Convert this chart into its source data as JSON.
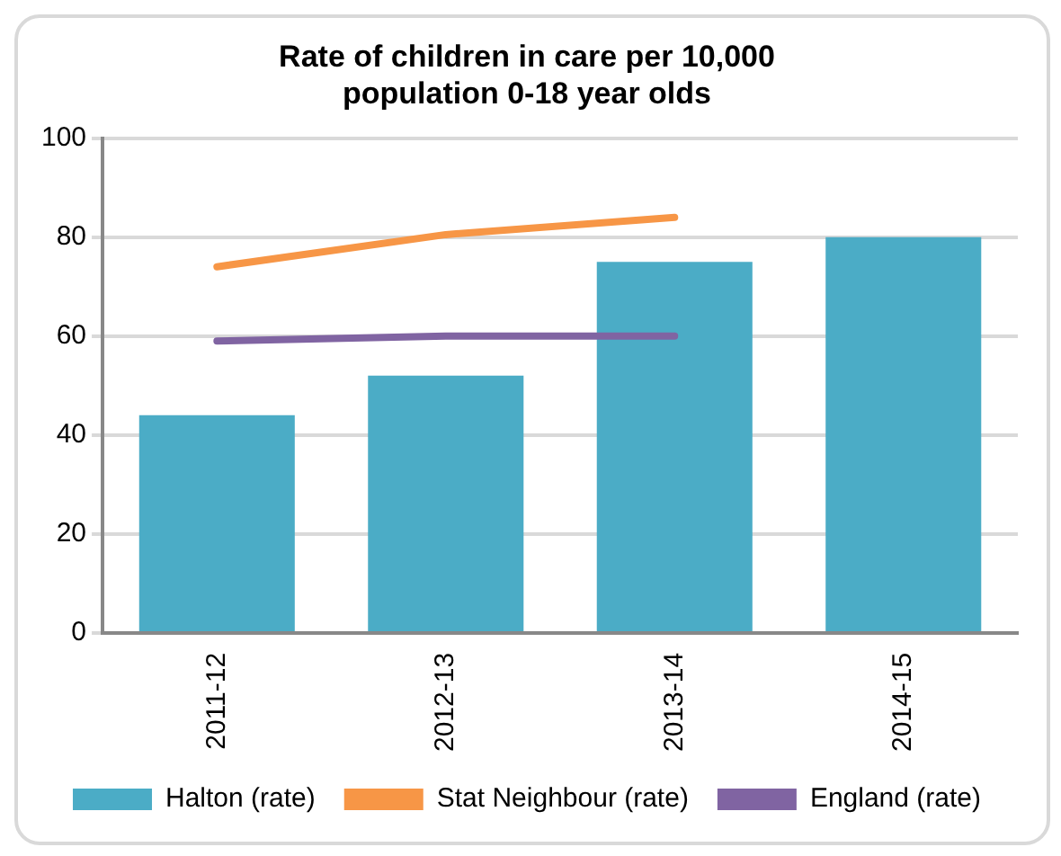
{
  "chart_data": {
    "type": "bar",
    "title": "Rate of children in care per 10,000 population 0-18 year olds",
    "categories": [
      "2011-12",
      "2012-13",
      "2013-14",
      "2014-15"
    ],
    "series": [
      {
        "name": "Halton (rate)",
        "color": "#4bacc6",
        "values": [
          44,
          52,
          75,
          80
        ]
      },
      {
        "name": "Stat Neighbour (rate)",
        "type": "line",
        "color": "#f79646",
        "values": [
          74,
          80.5,
          84,
          null
        ]
      },
      {
        "name": "England (rate)",
        "type": "line",
        "color": "#8064a2",
        "values": [
          59,
          60,
          60,
          null
        ]
      }
    ],
    "ylim": [
      0,
      100
    ],
    "yticks": [
      0,
      20,
      40,
      60,
      80,
      100
    ],
    "grid": "y",
    "legend": "bottom",
    "marker": "none"
  }
}
